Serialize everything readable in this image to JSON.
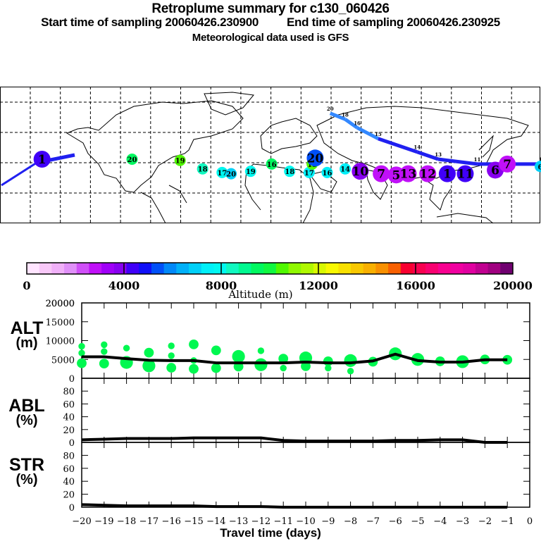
{
  "header": {
    "title": "Retroplume summary for c130_060426",
    "start_label": "Start time of sampling 20060426.230900",
    "end_label": "End time of sampling 20060426.230925",
    "met_label": "Meteorological data used is GFS"
  },
  "map": {
    "description": "World map with retroplume cluster centroids colored by altitude and labeled by travel day",
    "clusters": [
      {
        "label": "1",
        "lon": -152,
        "lat": 18,
        "alt": 4500
      },
      {
        "label": "20",
        "lon": -92,
        "lat": 18,
        "alt": 9500
      },
      {
        "label": "19",
        "lon": -60,
        "lat": 17,
        "alt": 10500
      },
      {
        "label": "18",
        "lon": -45,
        "lat": 10,
        "alt": 8500
      },
      {
        "label": "17",
        "lon": -32,
        "lat": 7,
        "alt": 8000
      },
      {
        "label": "20",
        "lon": -26,
        "lat": 6,
        "alt": 7000
      },
      {
        "label": "19",
        "lon": -13,
        "lat": 8,
        "alt": 8000
      },
      {
        "label": "16",
        "lon": 1,
        "lat": 14,
        "alt": 9500
      },
      {
        "label": "18",
        "lon": 13,
        "lat": 8,
        "alt": 8000
      },
      {
        "label": "17",
        "lon": 26,
        "lat": 7,
        "alt": 7500
      },
      {
        "label": "15",
        "lon": 28,
        "lat": 14,
        "alt": 10500
      },
      {
        "label": "20",
        "lon": 30,
        "lat": 19,
        "alt": 5500
      },
      {
        "label": "16",
        "lon": 38,
        "lat": 7,
        "alt": 7500
      },
      {
        "label": "14",
        "lon": 50,
        "lat": 10,
        "alt": 7500
      },
      {
        "label": "10",
        "lon": 60,
        "lat": 8,
        "alt": 4000
      },
      {
        "label": "7",
        "lon": 74,
        "lat": 6,
        "alt": 3000
      },
      {
        "label": "5",
        "lon": 84,
        "lat": 5,
        "alt": 3000
      },
      {
        "label": "13",
        "lon": 92,
        "lat": 6,
        "alt": 3000
      },
      {
        "label": "12",
        "lon": 105,
        "lat": 6,
        "alt": 3000
      },
      {
        "label": "1",
        "lon": 118,
        "lat": 6,
        "alt": 4500
      },
      {
        "label": "11",
        "lon": 130,
        "lat": 6,
        "alt": 4500
      },
      {
        "label": "6",
        "lon": 150,
        "lat": 9,
        "alt": 4000
      },
      {
        "label": "7",
        "lon": 158,
        "lat": 14,
        "alt": 3000
      },
      {
        "label": "6",
        "lon": 180,
        "lat": 12,
        "alt": 7000
      }
    ],
    "track": [
      {
        "label": "20",
        "lon": 40,
        "lat": 56
      },
      {
        "label": "18",
        "lon": 50,
        "lat": 51
      },
      {
        "label": "16",
        "lon": 58,
        "lat": 44
      },
      {
        "label": "15",
        "lon": 72,
        "lat": 35
      },
      {
        "label": "14",
        "lon": 98,
        "lat": 24
      },
      {
        "label": "13",
        "lon": 112,
        "lat": 18
      },
      {
        "label": "11",
        "lon": 138,
        "lat": 14
      },
      {
        "label": "9",
        "lon": 160,
        "lat": 14
      },
      {
        "label": "1",
        "lon": 180,
        "lat": 14
      }
    ]
  },
  "colorbar": {
    "ticks": [
      "0",
      "4000",
      "8000",
      "12000",
      "16000",
      "20000"
    ],
    "label": "Altitude (m)",
    "colors": [
      "#ffe4ff",
      "#f8c8f8",
      "#f0b0f8",
      "#e090f8",
      "#d050f8",
      "#c010f8",
      "#a000f8",
      "#8800f0",
      "#4000f8",
      "#1010f8",
      "#0050f8",
      "#0088f8",
      "#00b0f8",
      "#00d0f8",
      "#00f0f8",
      "#00f8f0",
      "#10f8c0",
      "#00f890",
      "#00f860",
      "#10f840",
      "#50f800",
      "#90f800",
      "#b0f800",
      "#d8f800",
      "#f8f800",
      "#f8e000",
      "#f8c800",
      "#f8b000",
      "#f89000",
      "#f86000",
      "#f80030",
      "#f80050",
      "#f80070",
      "#f80090",
      "#f000a0",
      "#e000a0",
      "#c00090",
      "#a00080",
      "#700070"
    ]
  },
  "chart_data": [
    {
      "type": "line",
      "panel": "ALT",
      "ylabel_top": "ALT",
      "ylabel_bottom": "(m)",
      "ylim": [
        0,
        20000
      ],
      "yticks": [
        "0",
        "5000",
        "10000",
        "15000",
        "20000"
      ],
      "x": [
        -20,
        -19,
        -18,
        -17,
        -16,
        -15,
        -14,
        -13,
        -12,
        -11,
        -10,
        -9,
        -8,
        -7,
        -6,
        -5,
        -4,
        -3,
        -2,
        -1
      ],
      "values": [
        5700,
        5700,
        5200,
        4800,
        4700,
        4700,
        4100,
        4100,
        4100,
        4100,
        4300,
        4100,
        4100,
        4600,
        6400,
        4700,
        4300,
        4300,
        4900,
        4900
      ],
      "scatter_color": "#00f850",
      "scatter": [
        {
          "x": -20,
          "y": 8500,
          "s": 1
        },
        {
          "x": -20,
          "y": 6700,
          "s": 1
        },
        {
          "x": -20,
          "y": 4000,
          "s": 2
        },
        {
          "x": -19,
          "y": 8900,
          "s": 1
        },
        {
          "x": -19,
          "y": 7100,
          "s": 1
        },
        {
          "x": -19,
          "y": 3900,
          "s": 2
        },
        {
          "x": -18,
          "y": 8000,
          "s": 1
        },
        {
          "x": -18,
          "y": 4200,
          "s": 3
        },
        {
          "x": -17,
          "y": 6800,
          "s": 2
        },
        {
          "x": -17,
          "y": 3300,
          "s": 3
        },
        {
          "x": -16,
          "y": 8600,
          "s": 1
        },
        {
          "x": -16,
          "y": 6000,
          "s": 1
        },
        {
          "x": -16,
          "y": 2800,
          "s": 2
        },
        {
          "x": -15,
          "y": 9000,
          "s": 2
        },
        {
          "x": -15,
          "y": 4700,
          "s": 1
        },
        {
          "x": -15,
          "y": 2500,
          "s": 2
        },
        {
          "x": -14,
          "y": 7400,
          "s": 2
        },
        {
          "x": -14,
          "y": 2700,
          "s": 2
        },
        {
          "x": -13,
          "y": 5800,
          "s": 3
        },
        {
          "x": -13,
          "y": 3100,
          "s": 2
        },
        {
          "x": -12,
          "y": 7300,
          "s": 1
        },
        {
          "x": -12,
          "y": 3600,
          "s": 3
        },
        {
          "x": -11,
          "y": 5200,
          "s": 2
        },
        {
          "x": -11,
          "y": 4700,
          "s": 1
        },
        {
          "x": -11,
          "y": 2700,
          "s": 1
        },
        {
          "x": -10,
          "y": 5400,
          "s": 3
        },
        {
          "x": -10,
          "y": 3200,
          "s": 2
        },
        {
          "x": -9,
          "y": 4500,
          "s": 2
        },
        {
          "x": -9,
          "y": 2700,
          "s": 1
        },
        {
          "x": -8,
          "y": 4700,
          "s": 3
        },
        {
          "x": -8,
          "y": 1900,
          "s": 1
        },
        {
          "x": -7,
          "y": 4400,
          "s": 2
        },
        {
          "x": -6,
          "y": 6500,
          "s": 3
        },
        {
          "x": -5,
          "y": 5000,
          "s": 3
        },
        {
          "x": -4,
          "y": 4500,
          "s": 2
        },
        {
          "x": -3,
          "y": 4400,
          "s": 3
        },
        {
          "x": -2,
          "y": 5000,
          "s": 2
        },
        {
          "x": -1,
          "y": 4900,
          "s": 2
        }
      ]
    },
    {
      "type": "line",
      "panel": "ABL",
      "ylabel_top": "ABL",
      "ylabel_bottom": "(%)",
      "ylim": [
        0,
        100
      ],
      "yticks": [
        "0",
        "20",
        "40",
        "60",
        "80"
      ],
      "x": [
        -20,
        -19,
        -18,
        -17,
        -16,
        -15,
        -14,
        -13,
        -12,
        -11,
        -10,
        -9,
        -8,
        -7,
        -6,
        -5,
        -4,
        -3,
        -2,
        -1
      ],
      "values": [
        4,
        5,
        6,
        6,
        6,
        7,
        7,
        7,
        7,
        3,
        2,
        2,
        2,
        2,
        3,
        3,
        4,
        4,
        0,
        0
      ]
    },
    {
      "type": "line",
      "panel": "STR",
      "ylabel_top": "STR",
      "ylabel_bottom": "(%)",
      "ylim": [
        0,
        100
      ],
      "yticks": [
        "0",
        "20",
        "40",
        "60",
        "80"
      ],
      "x": [
        -20,
        -19,
        -18,
        -17,
        -16,
        -15,
        -14,
        -13,
        -12,
        -11,
        -10,
        -9,
        -8,
        -7,
        -6,
        -5,
        -4,
        -3,
        -2,
        -1
      ],
      "values": [
        4,
        3,
        2,
        2,
        2,
        2,
        1,
        1,
        1,
        0,
        0,
        0,
        0,
        0,
        0,
        0,
        0,
        0,
        0,
        0
      ]
    }
  ],
  "xaxis": {
    "label": "Travel time (days)",
    "ticks": [
      "-20",
      "-19",
      "-18",
      "-17",
      "-16",
      "-15",
      "-14",
      "-13",
      "-12",
      "-11",
      "-10",
      "-9",
      "-8",
      "-7",
      "-6",
      "-5",
      "-4",
      "-3",
      "-2",
      "-1",
      "0"
    ],
    "xlim": [
      -20,
      0
    ]
  }
}
